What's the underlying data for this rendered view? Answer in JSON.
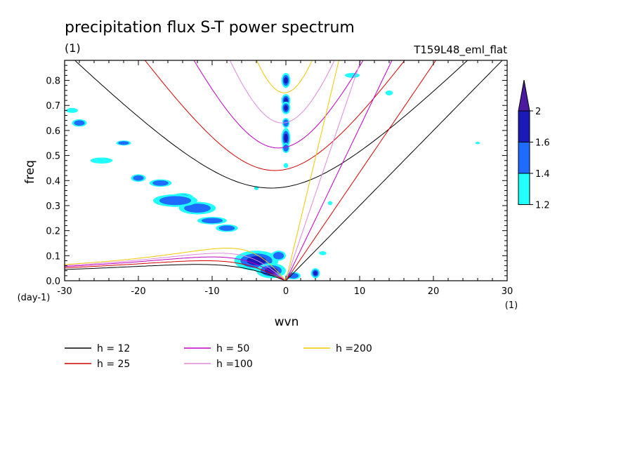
{
  "chart_data": {
    "type": "contour",
    "title": "precipitation flux S-T power spectrum",
    "subtitle_left": "(1)",
    "subtitle_right": "T159L48_eml_flat",
    "xlabel": "wvn",
    "ylabel": "freq",
    "x_unit_label": "(1)",
    "y_unit_label": "(day-1)",
    "xlim": [
      -30,
      30
    ],
    "ylim": [
      0.0,
      0.88
    ],
    "x_ticks": [
      -30,
      -20,
      -10,
      0,
      10,
      20,
      30
    ],
    "x_tick_labels": [
      "-30",
      "-20",
      "-10",
      "0",
      "10",
      "20",
      "30"
    ],
    "y_ticks": [
      0.0,
      0.1,
      0.2,
      0.3,
      0.4,
      0.5,
      0.6,
      0.7,
      0.8
    ],
    "y_tick_labels": [
      "0.0",
      "0.1",
      "0.2",
      "0.3",
      "0.4",
      "0.5",
      "0.6",
      "0.7",
      "0.8"
    ],
    "colorbar": {
      "levels": [
        1.2,
        1.4,
        1.6,
        2
      ],
      "level_labels": [
        "1.2",
        "1.4",
        "1.6",
        "2"
      ],
      "colors": [
        "#22ffff",
        "#1f6bff",
        "#1a1ab8",
        "#4b1aa0"
      ]
    },
    "dispersion_curves": [
      {
        "name": "h = 12",
        "h": 12,
        "color": "#000000"
      },
      {
        "name": "h = 25",
        "h": 25,
        "color": "#d40000"
      },
      {
        "name": "h = 50",
        "h": 50,
        "color": "#c000c0"
      },
      {
        "name": "h =100",
        "h": 100,
        "color": "#dd88dd"
      },
      {
        "name": "h =200",
        "h": 200,
        "color": "#f0c800"
      }
    ],
    "contour_blobs": [
      {
        "x": 0,
        "y": 0.8,
        "rx": 0.6,
        "ry": 0.03,
        "level": 2
      },
      {
        "x": 0,
        "y": 0.72,
        "rx": 0.6,
        "ry": 0.025,
        "level": 2
      },
      {
        "x": 0,
        "y": 0.69,
        "rx": 0.6,
        "ry": 0.025,
        "level": 2
      },
      {
        "x": 0,
        "y": 0.63,
        "rx": 0.5,
        "ry": 0.02,
        "level": 1
      },
      {
        "x": 0,
        "y": 0.57,
        "rx": 0.6,
        "ry": 0.04,
        "level": 2
      },
      {
        "x": 0,
        "y": 0.53,
        "rx": 0.5,
        "ry": 0.02,
        "level": 1
      },
      {
        "x": 0,
        "y": 0.46,
        "rx": 0.3,
        "ry": 0.01,
        "level": 0
      },
      {
        "x": -4,
        "y": 0.37,
        "rx": 0.3,
        "ry": 0.008,
        "level": 0
      },
      {
        "x": -14,
        "y": 0.33,
        "rx": 1.5,
        "ry": 0.02,
        "level": 2
      },
      {
        "x": -12,
        "y": 0.29,
        "rx": 2.5,
        "ry": 0.025,
        "level": 1
      },
      {
        "x": -15,
        "y": 0.32,
        "rx": 3.0,
        "ry": 0.025,
        "level": 1
      },
      {
        "x": -10,
        "y": 0.24,
        "rx": 2.0,
        "ry": 0.015,
        "level": 1
      },
      {
        "x": -8,
        "y": 0.21,
        "rx": 1.5,
        "ry": 0.015,
        "level": 1
      },
      {
        "x": -17,
        "y": 0.39,
        "rx": 1.5,
        "ry": 0.015,
        "level": 1
      },
      {
        "x": -20,
        "y": 0.41,
        "rx": 1.0,
        "ry": 0.015,
        "level": 1
      },
      {
        "x": -25,
        "y": 0.48,
        "rx": 1.5,
        "ry": 0.012,
        "level": 0
      },
      {
        "x": -22,
        "y": 0.55,
        "rx": 1.0,
        "ry": 0.01,
        "level": 1
      },
      {
        "x": -28,
        "y": 0.63,
        "rx": 1.0,
        "ry": 0.015,
        "level": 1
      },
      {
        "x": -29,
        "y": 0.68,
        "rx": 0.8,
        "ry": 0.01,
        "level": 0
      },
      {
        "x": -4,
        "y": 0.08,
        "rx": 3.0,
        "ry": 0.04,
        "level": 2
      },
      {
        "x": -2,
        "y": 0.04,
        "rx": 2.0,
        "ry": 0.03,
        "level": 2
      },
      {
        "x": -1,
        "y": 0.1,
        "rx": 1.0,
        "ry": 0.02,
        "level": 1
      },
      {
        "x": 1,
        "y": 0.02,
        "rx": 1.0,
        "ry": 0.015,
        "level": 1
      },
      {
        "x": 4,
        "y": 0.03,
        "rx": 0.6,
        "ry": 0.02,
        "level": 2
      },
      {
        "x": 5,
        "y": 0.11,
        "rx": 0.5,
        "ry": 0.008,
        "level": 0
      },
      {
        "x": 6,
        "y": 0.31,
        "rx": 0.3,
        "ry": 0.008,
        "level": 0
      },
      {
        "x": 9,
        "y": 0.82,
        "rx": 1.0,
        "ry": 0.01,
        "level": 0
      },
      {
        "x": 14,
        "y": 0.75,
        "rx": 0.5,
        "ry": 0.01,
        "level": 0
      },
      {
        "x": 26,
        "y": 0.55,
        "rx": 0.3,
        "ry": 0.005,
        "level": 0
      }
    ]
  }
}
